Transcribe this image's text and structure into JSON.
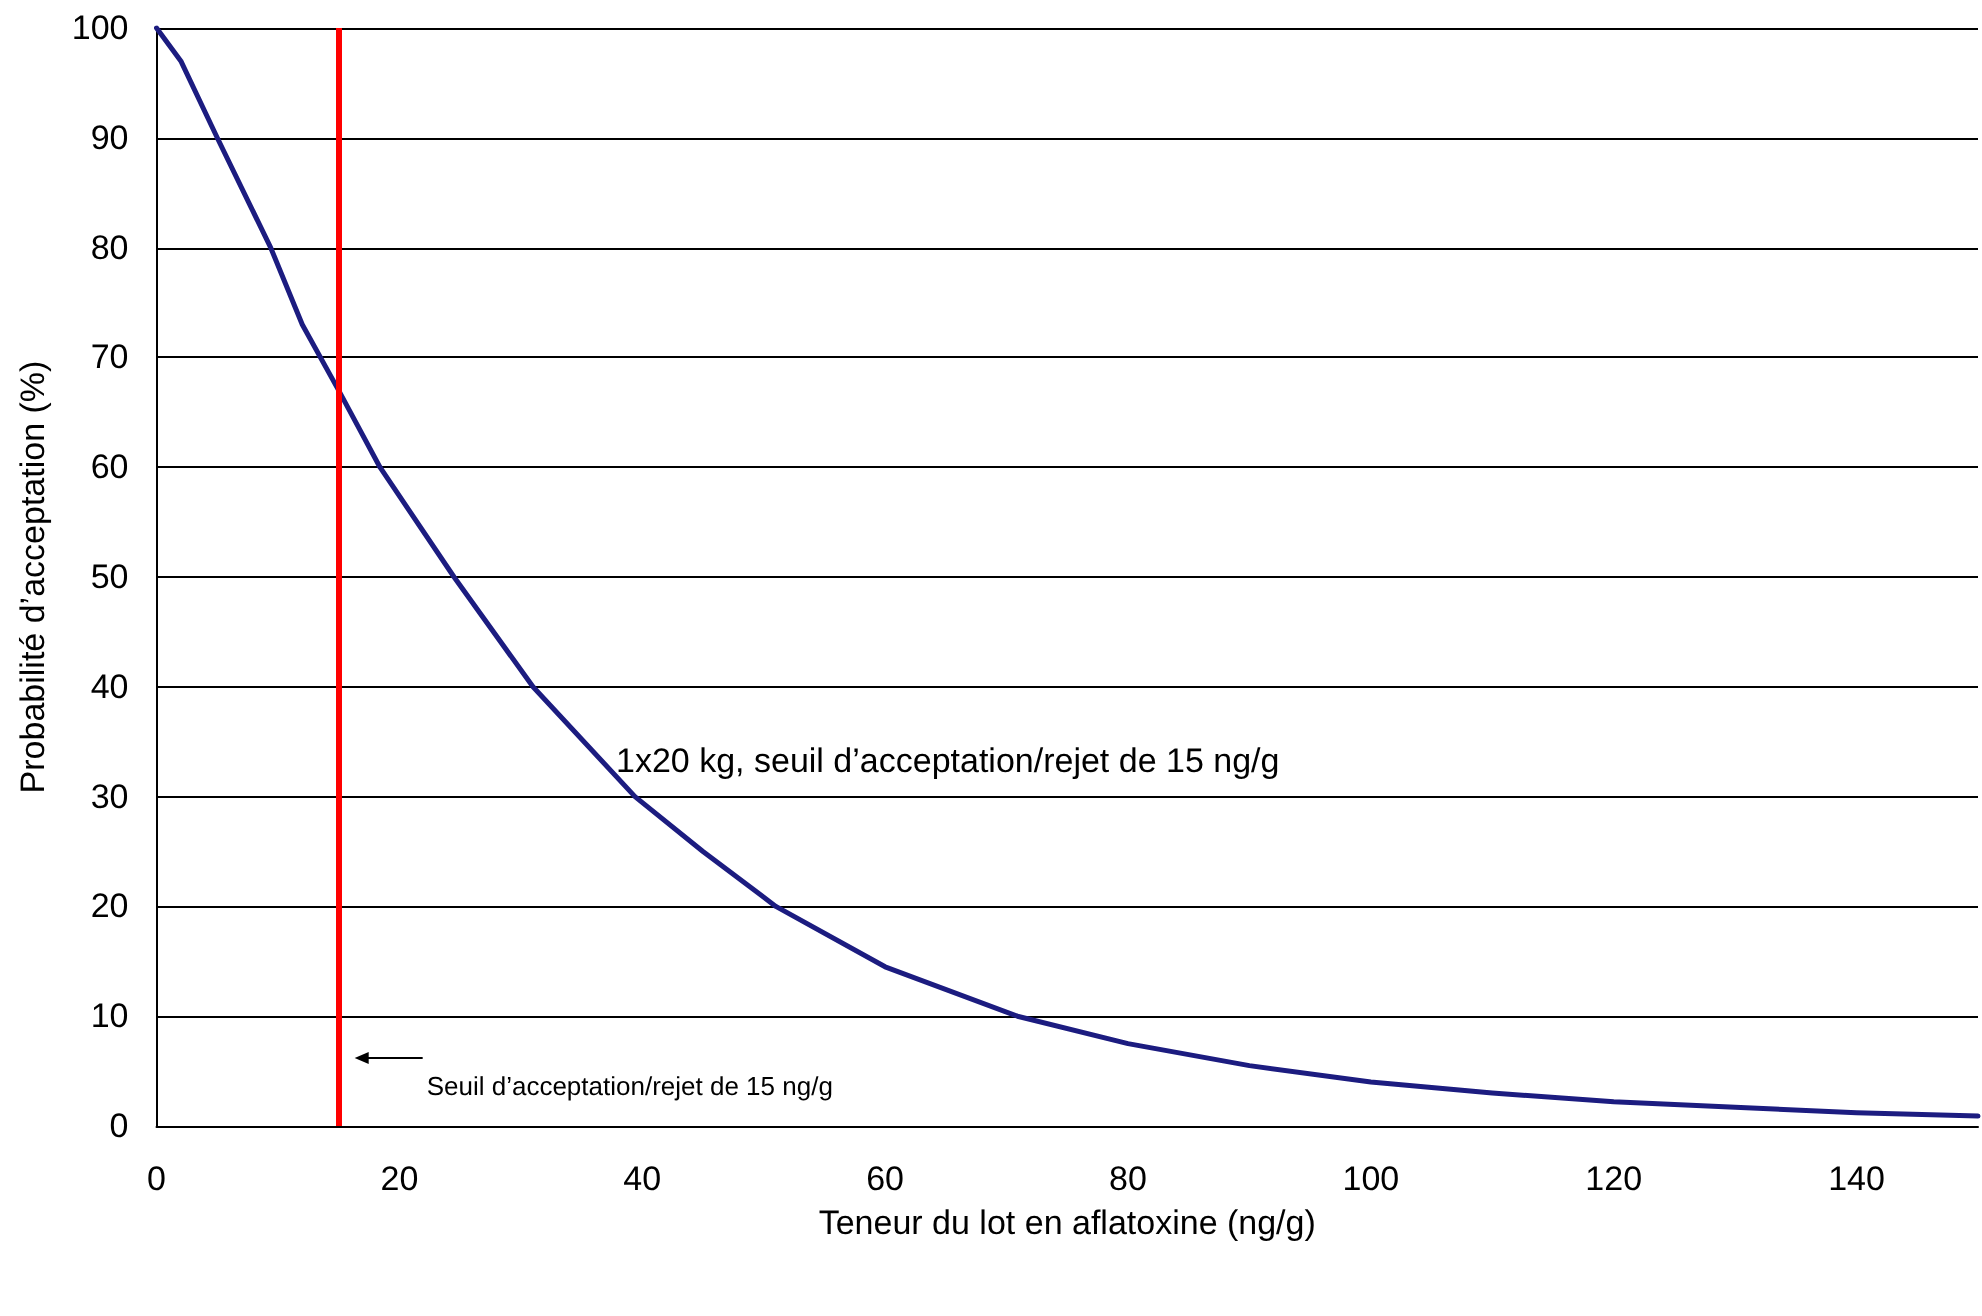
{
  "chart_data": {
    "type": "line",
    "xlabel": "Teneur du lot en aflatoxine (ng/g)",
    "ylabel": "Probabilité d’acceptation (%)",
    "x": [
      0,
      2,
      5,
      9.4,
      12,
      15,
      18.4,
      24.5,
      31,
      39.4,
      45,
      51,
      60,
      70.9,
      80,
      90,
      100,
      110,
      120,
      130,
      140,
      150
    ],
    "series": [
      {
        "color": "#1c1c80",
        "values": [
          100,
          97,
          90,
          80,
          73,
          67,
          60,
          50,
          40,
          30,
          25,
          20,
          14.5,
          10,
          7.5,
          5.5,
          4,
          3,
          2.2,
          1.7,
          1.2,
          0.9
        ]
      }
    ],
    "xlim": [
      0,
      150
    ],
    "xticks": [
      0,
      20,
      40,
      60,
      80,
      100,
      120,
      140
    ],
    "ylim": [
      0,
      100
    ],
    "yticks": [
      0,
      10,
      20,
      30,
      40,
      50,
      60,
      70,
      80,
      90,
      100
    ],
    "grid": "y",
    "marker": "none",
    "line_style": "solid",
    "ref_lines": [
      {
        "axis": "x",
        "value": 15,
        "label": "Seuil d’acceptation/rejet de 15 ng/g",
        "color": "#ff0000"
      }
    ],
    "annotations": [
      "1x20 kg, seuil d’acceptation/rejet de 15 ng/g"
    ]
  }
}
